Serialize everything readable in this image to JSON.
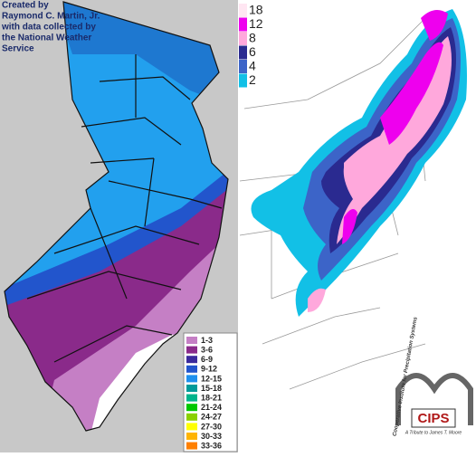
{
  "credit": {
    "lines": [
      "Created by",
      "Raymond C. Martin, Jr.",
      "with data collected by",
      "the National Weather",
      "Service"
    ]
  },
  "left_legend": {
    "items": [
      {
        "label": "1-3",
        "color": "#c57fc5"
      },
      {
        "label": "3-6",
        "color": "#8a2a8a"
      },
      {
        "label": "6-9",
        "color": "#3b2a9c"
      },
      {
        "label": "9-12",
        "color": "#2255cc"
      },
      {
        "label": "12-15",
        "color": "#1e90ee"
      },
      {
        "label": "15-18",
        "color": "#009a9a"
      },
      {
        "label": "18-21",
        "color": "#00b48c"
      },
      {
        "label": "21-24",
        "color": "#00c800"
      },
      {
        "label": "24-27",
        "color": "#8ad000"
      },
      {
        "label": "27-30",
        "color": "#ffff00"
      },
      {
        "label": "30-33",
        "color": "#ffb400"
      },
      {
        "label": "33-36",
        "color": "#ff8000"
      }
    ]
  },
  "right_legend": {
    "items": [
      {
        "label": "18",
        "color": "#ffe6f2"
      },
      {
        "label": "12",
        "color": "#ee00ee"
      },
      {
        "label": "8",
        "color": "#ffa8dc"
      },
      {
        "label": "6",
        "color": "#2a2a90"
      },
      {
        "label": "4",
        "color": "#3c64c8"
      },
      {
        "label": "2",
        "color": "#12c0e6"
      }
    ]
  },
  "logo": {
    "acronym": "CIPS",
    "name": "Cooperative Institute for Precipitation Systems",
    "tribute": "A Tribute to James T. Moore"
  }
}
